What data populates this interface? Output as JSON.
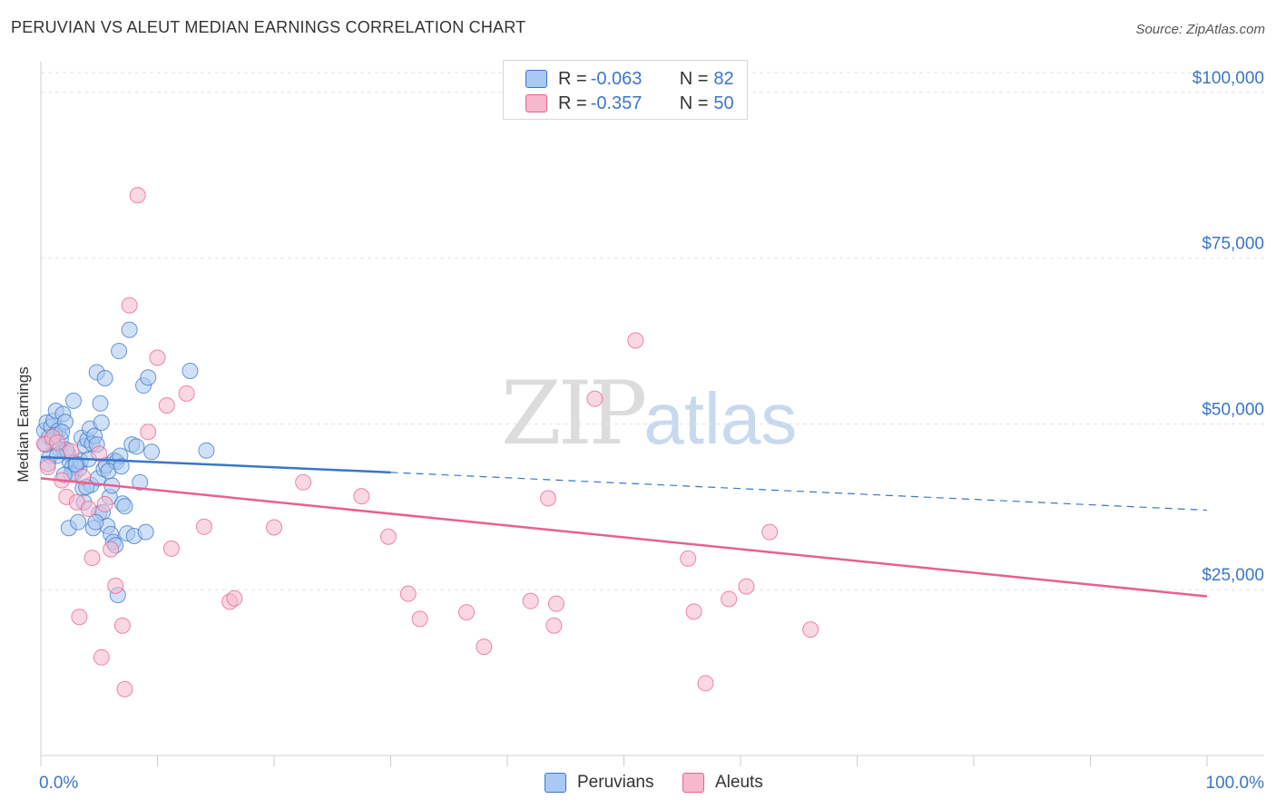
{
  "header": {
    "title": "PERUVIAN VS ALEUT MEDIAN EARNINGS CORRELATION CHART",
    "source": "Source: ZipAtlas.com"
  },
  "watermark": {
    "zip": "ZIP",
    "atlas": "atlas"
  },
  "legend_top": {
    "rows": [
      {
        "r_label": "R = ",
        "r_value": "-0.063",
        "n_label": "N = ",
        "n_value": "82",
        "color": "#a9c9f0"
      },
      {
        "r_label": "R = ",
        "r_value": "-0.357",
        "n_label": "N = ",
        "n_value": "50",
        "color": "#f6b8cc"
      }
    ]
  },
  "legend_bottom": {
    "items": [
      {
        "label": "Peruvians",
        "color": "#a9c9f0"
      },
      {
        "label": "Aleuts",
        "color": "#f6b8cc"
      }
    ]
  },
  "chart_data": {
    "type": "scatter",
    "title": "PERUVIAN VS ALEUT MEDIAN EARNINGS CORRELATION CHART",
    "xlabel": "",
    "ylabel": "Median Earnings",
    "xlim": [
      0,
      100
    ],
    "ylim": [
      0,
      103000
    ],
    "x_tick_labels": [
      "0.0%",
      "100.0%"
    ],
    "y_ticks": [
      25000,
      50000,
      75000,
      100000
    ],
    "y_tick_labels": [
      "$25,000",
      "$50,000",
      "$75,000",
      "$100,000"
    ],
    "series": [
      {
        "name": "Peruvians",
        "color": "#3a76c8",
        "fill": "#a9c9f0",
        "r": -0.063,
        "n": 82,
        "trend": {
          "x0": 0,
          "y0": 45000,
          "x1": 30,
          "y1": 42700,
          "dash_to_x": 100,
          "dash_to_y": 37000
        },
        "points": [
          [
            0.3,
            49000
          ],
          [
            0.5,
            50200
          ],
          [
            0.7,
            48000
          ],
          [
            0.9,
            49600
          ],
          [
            1.1,
            50500
          ],
          [
            1.3,
            52000
          ],
          [
            1.5,
            49000
          ],
          [
            1.7,
            47800
          ],
          [
            1.9,
            51500
          ],
          [
            2.1,
            50300
          ],
          [
            1.0,
            47500
          ],
          [
            1.6,
            46200
          ],
          [
            2.3,
            45600
          ],
          [
            2.5,
            44200
          ],
          [
            2.7,
            43500
          ],
          [
            2.9,
            42600
          ],
          [
            3.1,
            44000
          ],
          [
            3.3,
            43300
          ],
          [
            0.8,
            45200
          ],
          [
            2.6,
            42400
          ],
          [
            3.5,
            47900
          ],
          [
            3.8,
            46700
          ],
          [
            4.0,
            47600
          ],
          [
            4.2,
            49300
          ],
          [
            4.4,
            47000
          ],
          [
            4.6,
            48200
          ],
          [
            3.4,
            44400
          ],
          [
            4.1,
            44700
          ],
          [
            4.8,
            46900
          ],
          [
            5.2,
            50200
          ],
          [
            3.6,
            40300
          ],
          [
            4.3,
            40800
          ],
          [
            4.9,
            41800
          ],
          [
            5.4,
            43200
          ],
          [
            5.6,
            43800
          ],
          [
            5.9,
            39000
          ],
          [
            6.1,
            40700
          ],
          [
            6.3,
            44500
          ],
          [
            6.5,
            44300
          ],
          [
            6.8,
            45200
          ],
          [
            3.7,
            38200
          ],
          [
            4.5,
            34300
          ],
          [
            5.0,
            36500
          ],
          [
            5.3,
            36700
          ],
          [
            5.7,
            34600
          ],
          [
            6.0,
            33400
          ],
          [
            6.2,
            32200
          ],
          [
            6.4,
            31700
          ],
          [
            7.0,
            38000
          ],
          [
            7.2,
            37600
          ],
          [
            2.4,
            34300
          ],
          [
            3.2,
            35200
          ],
          [
            4.7,
            35200
          ],
          [
            6.6,
            24200
          ],
          [
            7.4,
            33500
          ],
          [
            8.0,
            33100
          ],
          [
            9.0,
            33700
          ],
          [
            8.5,
            41200
          ],
          [
            7.8,
            46900
          ],
          [
            8.2,
            46600
          ],
          [
            2.8,
            53500
          ],
          [
            4.8,
            57800
          ],
          [
            5.1,
            53100
          ],
          [
            5.5,
            56900
          ],
          [
            6.7,
            61000
          ],
          [
            7.6,
            64200
          ],
          [
            8.8,
            55800
          ],
          [
            9.2,
            57000
          ],
          [
            12.8,
            58000
          ],
          [
            14.2,
            46000
          ],
          [
            1.2,
            48300
          ],
          [
            1.8,
            48800
          ],
          [
            2.2,
            46100
          ],
          [
            3.0,
            43900
          ],
          [
            3.9,
            40500
          ],
          [
            5.8,
            42900
          ],
          [
            6.9,
            43600
          ],
          [
            0.4,
            46900
          ],
          [
            1.4,
            45200
          ],
          [
            0.6,
            44000
          ],
          [
            2.0,
            42300
          ],
          [
            9.5,
            45800
          ]
        ]
      },
      {
        "name": "Aleuts",
        "color": "#e8608f",
        "fill": "#f6b8cc",
        "r": -0.357,
        "n": 50,
        "trend": {
          "x0": 0,
          "y0": 41800,
          "x1": 100,
          "y1": 24000
        },
        "points": [
          [
            0.3,
            47000
          ],
          [
            0.6,
            43500
          ],
          [
            1.0,
            48000
          ],
          [
            1.4,
            47200
          ],
          [
            1.8,
            41500
          ],
          [
            2.2,
            39000
          ],
          [
            2.6,
            45900
          ],
          [
            3.1,
            38200
          ],
          [
            3.6,
            42000
          ],
          [
            4.1,
            37200
          ],
          [
            4.4,
            29800
          ],
          [
            5.0,
            45500
          ],
          [
            5.5,
            37900
          ],
          [
            6.0,
            31100
          ],
          [
            6.4,
            25600
          ],
          [
            7.0,
            19600
          ],
          [
            7.6,
            67900
          ],
          [
            7.2,
            10000
          ],
          [
            8.3,
            84500
          ],
          [
            9.2,
            48800
          ],
          [
            10.0,
            60000
          ],
          [
            10.8,
            52800
          ],
          [
            11.2,
            31200
          ],
          [
            12.5,
            54600
          ],
          [
            14.0,
            34500
          ],
          [
            16.2,
            23200
          ],
          [
            16.6,
            23700
          ],
          [
            20.0,
            34400
          ],
          [
            22.5,
            41200
          ],
          [
            27.5,
            39100
          ],
          [
            29.8,
            33000
          ],
          [
            31.5,
            24400
          ],
          [
            32.5,
            20600
          ],
          [
            36.5,
            21600
          ],
          [
            38.0,
            16400
          ],
          [
            42.0,
            23300
          ],
          [
            43.5,
            38800
          ],
          [
            44.0,
            19600
          ],
          [
            44.2,
            22900
          ],
          [
            47.5,
            53800
          ],
          [
            51.0,
            62600
          ],
          [
            55.5,
            29700
          ],
          [
            56.0,
            21700
          ],
          [
            57.0,
            10900
          ],
          [
            59.0,
            23600
          ],
          [
            60.5,
            25500
          ],
          [
            62.5,
            33700
          ],
          [
            66.0,
            19000
          ],
          [
            3.3,
            20900
          ],
          [
            5.2,
            14800
          ]
        ]
      }
    ]
  }
}
